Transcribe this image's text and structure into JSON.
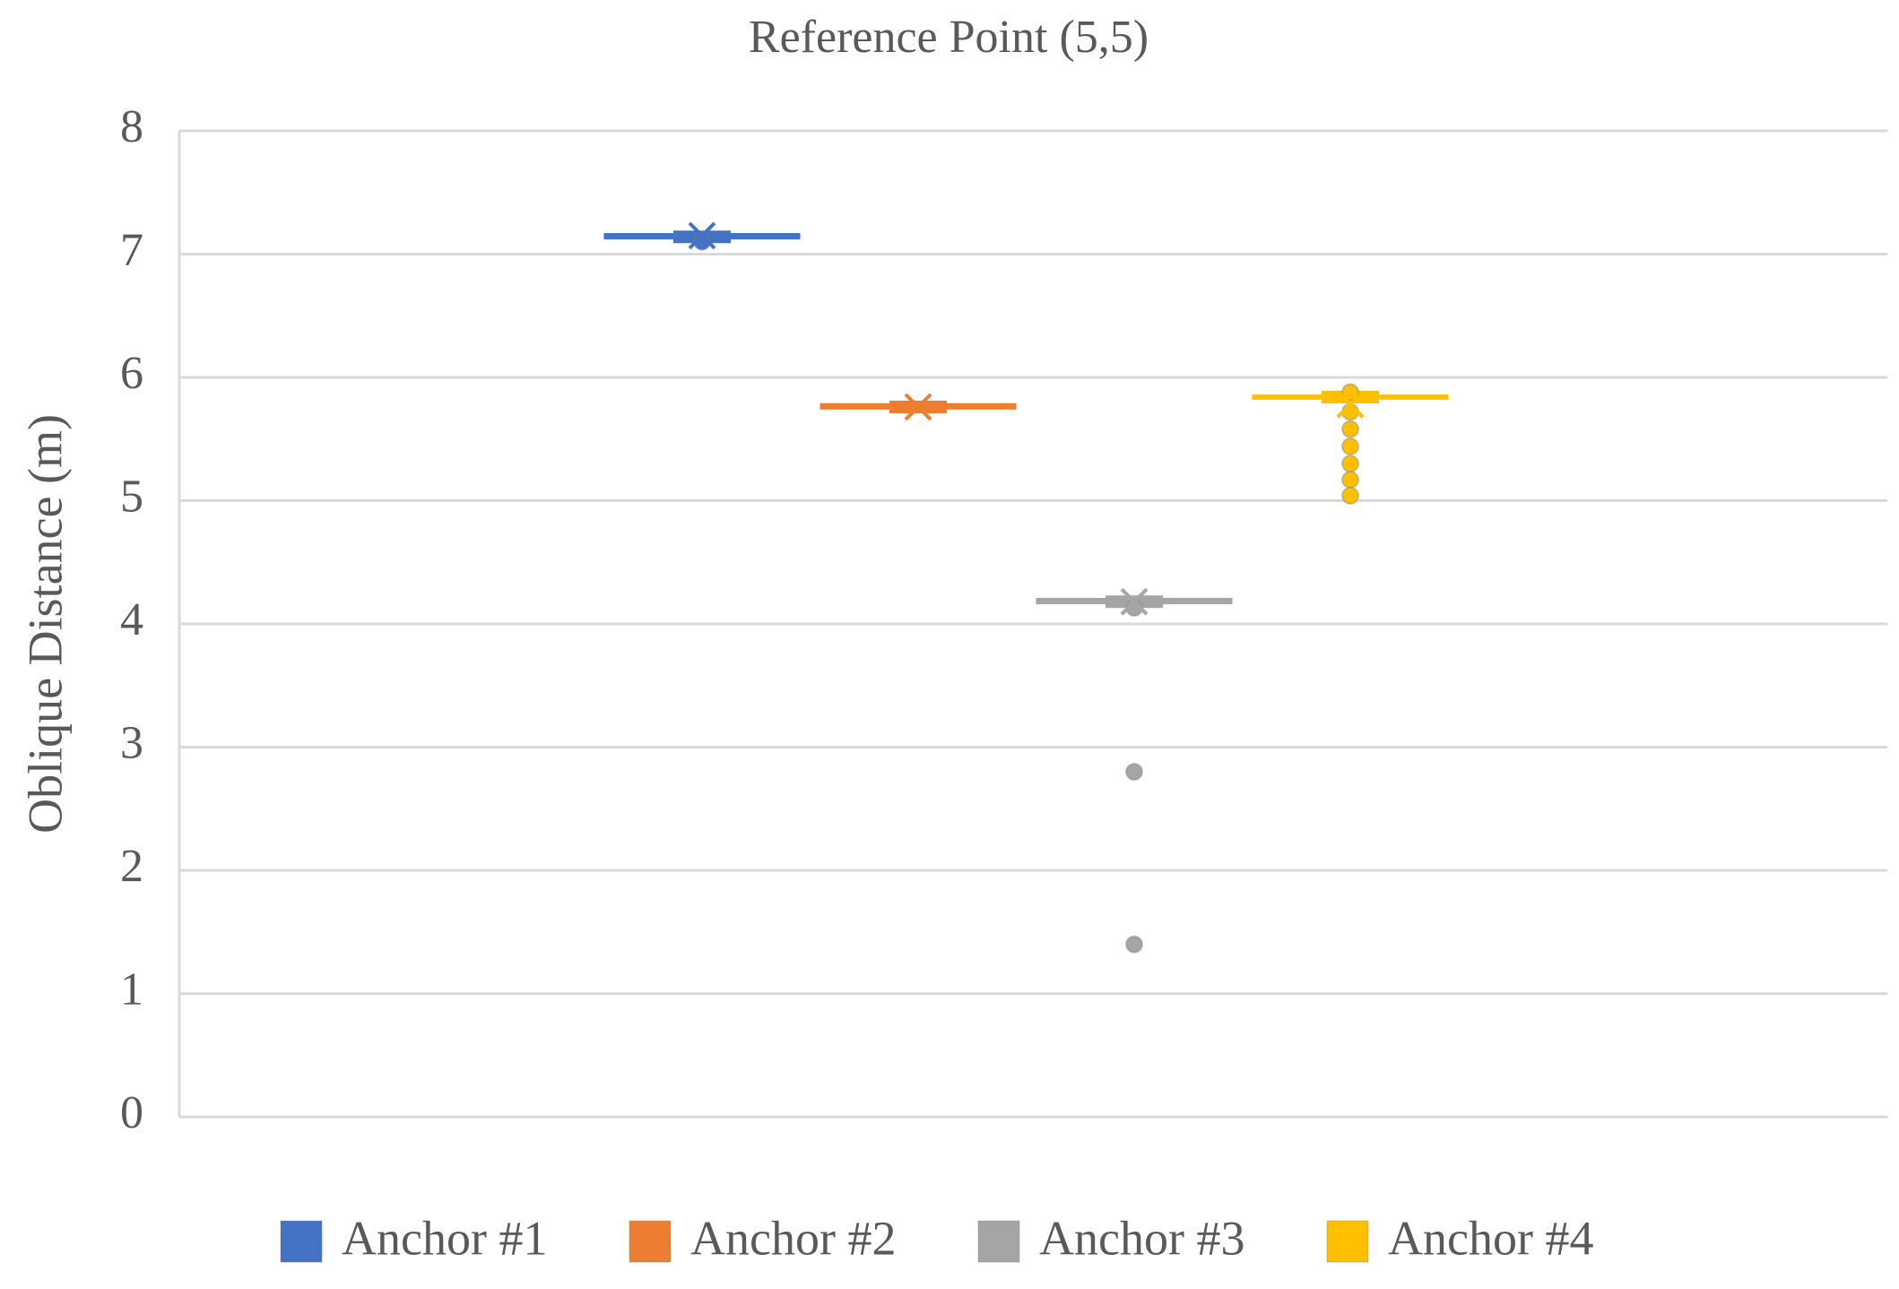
{
  "chart_data": {
    "type": "box",
    "title": "Reference Point (5,5)",
    "y_label": "Oblique Distance (m)",
    "ylim": [
      0,
      8
    ],
    "yticks": [
      0,
      1,
      2,
      3,
      4,
      5,
      6,
      7,
      8
    ],
    "grid": true,
    "legend": "bottom",
    "series": [
      {
        "name": "Anchor #1",
        "color": "#4472c4",
        "min": 7.12,
        "q1": 7.13,
        "median": 7.14,
        "q3": 7.16,
        "max": 7.17,
        "mean": 7.15,
        "outliers": [
          7.1
        ]
      },
      {
        "name": "Anchor #2",
        "color": "#ed7d31",
        "min": 5.74,
        "q1": 5.75,
        "median": 5.76,
        "q3": 5.78,
        "max": 5.79,
        "mean": 5.76,
        "outliers": []
      },
      {
        "name": "Anchor #3",
        "color": "#a5a5a5",
        "min": 4.16,
        "q1": 4.17,
        "median": 4.18,
        "q3": 4.2,
        "max": 4.21,
        "mean": 4.18,
        "outliers": [
          4.13,
          2.8,
          1.4
        ]
      },
      {
        "name": "Anchor #4",
        "color": "#ffc000",
        "min": 5.82,
        "q1": 5.83,
        "median": 5.84,
        "q3": 5.85,
        "max": 5.86,
        "mean": 5.78,
        "outliers": [
          5.88,
          5.72,
          5.58,
          5.44,
          5.3,
          5.17,
          5.04
        ]
      }
    ]
  }
}
